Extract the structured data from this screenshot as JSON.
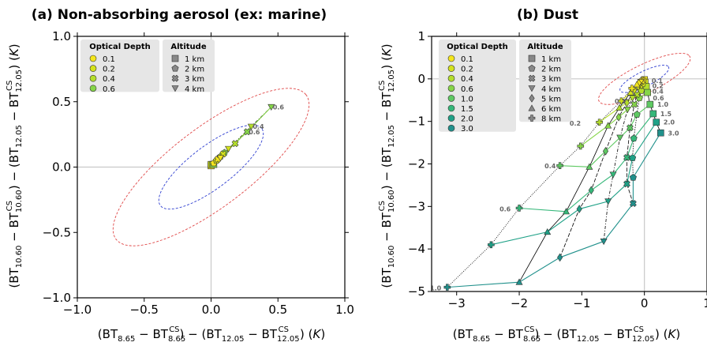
{
  "chart_data": [
    {
      "type": "scatter",
      "title": "(a) Non-absorbing aerosol (ex: marine)",
      "xlabel": "(BT8.65 − BTCS8.65) − (BT12.05 − BTCS12.05) (K)",
      "ylabel": "(BT10.60 − BTCS10.60) − (BT12.05 − BTCS12.05) (K)",
      "xlim": [
        -1.0,
        1.0
      ],
      "ylim": [
        -1.0,
        1.0
      ],
      "xticks": [
        "−1.0",
        "−0.5",
        "0.0",
        "0.5",
        "1.0"
      ],
      "yticks": [
        "−1.0",
        "−0.5",
        "0.0",
        "0.5",
        "1.0"
      ],
      "ellipses": [
        {
          "color": "#e04848",
          "cx": 0.0,
          "cy": 0.0,
          "rx": 0.9,
          "ry": 0.3,
          "angle_deg": 38
        },
        {
          "color": "#2f3fd0",
          "cx": 0.0,
          "cy": 0.0,
          "rx": 0.48,
          "ry": 0.16,
          "angle_deg": 38
        }
      ],
      "optical_depths": [
        "0.1",
        "0.2",
        "0.4",
        "0.6"
      ],
      "od_colors": [
        "#f4e61c",
        "#d3e21c",
        "#b4de2c",
        "#86d549"
      ],
      "altitudes": [
        "1 km",
        "2 km",
        "3 km",
        "4 km"
      ],
      "altitude_markers": [
        "square",
        "pentagon",
        "x",
        "triangle-down"
      ],
      "series": [
        {
          "altitude": "1 km",
          "points": [
            [
              0.0,
              0.01
            ],
            [
              0.0,
              0.02
            ],
            [
              0.01,
              0.02
            ],
            [
              0.02,
              0.02
            ]
          ]
        },
        {
          "altitude": "2 km",
          "points": [
            [
              0.02,
              0.03
            ],
            [
              0.04,
              0.05
            ],
            [
              0.07,
              0.08
            ],
            [
              0.1,
              0.11
            ]
          ]
        },
        {
          "altitude": "3 km",
          "points": [
            [
              0.05,
              0.06
            ],
            [
              0.09,
              0.1
            ],
            [
              0.18,
              0.18
            ],
            [
              0.27,
              0.27
            ]
          ]
        },
        {
          "altitude": "4 km",
          "points": [
            [
              0.07,
              0.07
            ],
            [
              0.13,
              0.14
            ],
            [
              0.3,
              0.31
            ],
            [
              0.45,
              0.46
            ]
          ]
        }
      ],
      "point_labels": [
        {
          "text": "0.6",
          "x": 0.45,
          "y": 0.46
        },
        {
          "text": "0.4",
          "x": 0.3,
          "y": 0.31
        },
        {
          "text": "0.6",
          "x": 0.27,
          "y": 0.27
        }
      ]
    },
    {
      "type": "scatter",
      "title": "(b) Dust",
      "xlabel": "(BT8.65 − BTCS8.65) − (BT12.05 − BTCS12.05) (K)",
      "ylabel": "(BT10.60 − BTCS10.60) − (BT12.05 − BTCS12.05) (K)",
      "xlim": [
        -3.4,
        1.0
      ],
      "ylim": [
        -5.0,
        1.0
      ],
      "xticks": [
        "−3",
        "−2",
        "−1",
        "0",
        "1"
      ],
      "yticks": [
        "−5",
        "−4",
        "−3",
        "−2",
        "−1",
        "0",
        "1"
      ],
      "ellipses": [
        {
          "color": "#e04848",
          "cx": 0.0,
          "cy": 0.0,
          "rx": 0.9,
          "ry": 0.3,
          "angle_deg": 38
        },
        {
          "color": "#2f3fd0",
          "cx": 0.0,
          "cy": 0.0,
          "rx": 0.48,
          "ry": 0.16,
          "angle_deg": 38
        }
      ],
      "optical_depths": [
        "0.1",
        "0.2",
        "0.4",
        "0.6",
        "1.0",
        "1.5",
        "2.0",
        "3.0"
      ],
      "od_colors": [
        "#f4e61c",
        "#d3e21c",
        "#b4de2c",
        "#86d549",
        "#5ec962",
        "#35b779",
        "#1fa187",
        "#21918c"
      ],
      "altitudes": [
        "1 km",
        "2 km",
        "3 km",
        "4 km",
        "5 km",
        "6 km",
        "8 km"
      ],
      "altitude_markers": [
        "square",
        "pentagon",
        "x",
        "triangle-down",
        "diamond",
        "triangle-up",
        "plus"
      ],
      "series": [
        {
          "altitude": "1 km",
          "points": [
            [
              0.0,
              -0.02
            ],
            [
              0.01,
              -0.08
            ],
            [
              0.03,
              -0.18
            ],
            [
              0.05,
              -0.32
            ],
            [
              0.09,
              -0.6
            ],
            [
              0.14,
              -0.82
            ],
            [
              0.19,
              -1.02
            ],
            [
              0.26,
              -1.27
            ]
          ]
        },
        {
          "altitude": "2 km",
          "points": [
            [
              -0.02,
              -0.03
            ],
            [
              -0.03,
              -0.12
            ],
            [
              -0.05,
              -0.28
            ],
            [
              -0.08,
              -0.45
            ],
            [
              -0.12,
              -0.84
            ],
            [
              -0.17,
              -1.4
            ],
            [
              -0.19,
              -1.86
            ],
            [
              -0.18,
              -2.32
            ]
          ]
        },
        {
          "altitude": "3 km",
          "points": [
            [
              -0.04,
              -0.05
            ],
            [
              -0.07,
              -0.16
            ],
            [
              -0.12,
              -0.37
            ],
            [
              -0.16,
              -0.6
            ],
            [
              -0.23,
              -1.15
            ],
            [
              -0.28,
              -1.85
            ],
            [
              -0.28,
              -2.47
            ],
            [
              -0.18,
              -2.93
            ]
          ]
        },
        {
          "altitude": "4 km",
          "points": [
            [
              -0.06,
              -0.07
            ],
            [
              -0.1,
              -0.2
            ],
            [
              -0.19,
              -0.45
            ],
            [
              -0.27,
              -0.72
            ],
            [
              -0.39,
              -1.38
            ],
            [
              -0.5,
              -2.25
            ],
            [
              -0.58,
              -2.88
            ],
            [
              -0.65,
              -3.82
            ]
          ]
        },
        {
          "altitude": "5 km",
          "points": [
            [
              -0.09,
              -0.1
            ],
            [
              -0.16,
              -0.26
            ],
            [
              -0.28,
              -0.56
            ],
            [
              -0.41,
              -0.9
            ],
            [
              -0.62,
              -1.7
            ],
            [
              -0.85,
              -2.62
            ],
            [
              -1.04,
              -3.06
            ],
            [
              -1.35,
              -4.2
            ]
          ]
        },
        {
          "altitude": "6 km",
          "points": [
            [
              -0.12,
              -0.13
            ],
            [
              -0.22,
              -0.32
            ],
            [
              -0.4,
              -0.68
            ],
            [
              -0.58,
              -1.1
            ],
            [
              -0.88,
              -2.07
            ],
            [
              -1.25,
              -3.12
            ],
            [
              -1.55,
              -3.6
            ],
            [
              -2.0,
              -4.78
            ]
          ]
        },
        {
          "altitude": "8 km",
          "points": [
            [
              -0.2,
              -0.22
            ],
            [
              -0.37,
              -0.52
            ],
            [
              -0.72,
              -1.02
            ],
            [
              -1.02,
              -1.58
            ],
            [
              -1.35,
              -2.04
            ],
            [
              -2.0,
              -3.04
            ],
            [
              -2.45,
              -3.9
            ],
            [
              -3.15,
              -4.9
            ]
          ]
        }
      ],
      "point_labels": [
        {
          "text": "0.1",
          "x": -0.5,
          "y": -0.52
        },
        {
          "text": "0.2",
          "x": -1.22,
          "y": -1.04
        },
        {
          "text": "0.4",
          "x": -1.62,
          "y": -2.05
        },
        {
          "text": "0.6",
          "x": -2.34,
          "y": -3.06
        },
        {
          "text": "1.0",
          "x": -3.45,
          "y": -4.92
        },
        {
          "text": "0.1",
          "x": 0.09,
          "y": -0.04
        },
        {
          "text": "0.2",
          "x": 0.1,
          "y": -0.16
        },
        {
          "text": "0.4",
          "x": 0.1,
          "y": -0.29
        },
        {
          "text": "0.6",
          "x": 0.11,
          "y": -0.45
        },
        {
          "text": "1.0",
          "x": 0.18,
          "y": -0.6
        },
        {
          "text": "1.5",
          "x": 0.23,
          "y": -0.82
        },
        {
          "text": "2.0",
          "x": 0.28,
          "y": -1.02
        },
        {
          "text": "3.0",
          "x": 0.35,
          "y": -1.28
        }
      ]
    }
  ]
}
